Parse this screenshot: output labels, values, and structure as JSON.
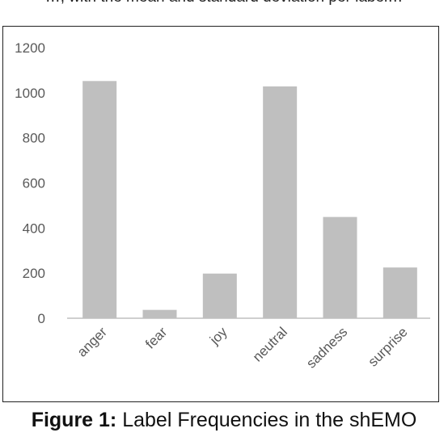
{
  "top_line": "…, with the mean and standard deviation per label…",
  "caption": {
    "label": "Figure 1:",
    "text": "Label Frequencies in the shEMO"
  },
  "colors": {
    "bar": "#bfbfbf",
    "axis_line": "#bfbfbf",
    "text": "#595959"
  },
  "chart_data": {
    "type": "bar",
    "title": "",
    "xlabel": "",
    "ylabel": "",
    "categories": [
      "anger",
      "fear",
      "joy",
      "neutral",
      "sadness",
      "surprise"
    ],
    "values": [
      1052,
      37,
      198,
      1028,
      449,
      225
    ],
    "ylim": [
      0,
      1200
    ],
    "yticks": [
      "0",
      "200",
      "400",
      "600",
      "800",
      "1000",
      "1200"
    ],
    "grid": false,
    "legend": "none"
  }
}
